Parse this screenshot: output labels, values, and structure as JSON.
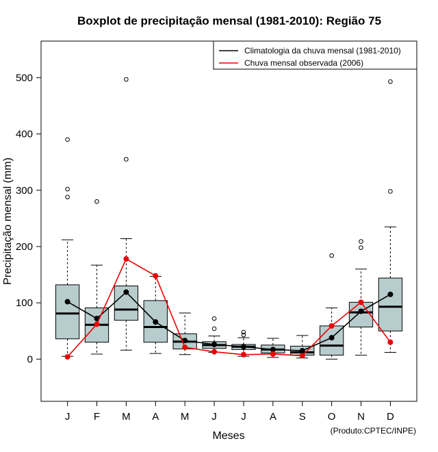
{
  "chart_data": {
    "type": "boxplot",
    "title": "Boxplot de precipitação mensal (1981-2010): Região 75",
    "xlabel": "Meses",
    "ylabel": "Precipitação mensal (mm)",
    "categories": [
      "J",
      "F",
      "M",
      "A",
      "M",
      "J",
      "J",
      "A",
      "S",
      "O",
      "N",
      "D"
    ],
    "ylim": [
      -75,
      565
    ],
    "yticks": [
      0,
      100,
      200,
      300,
      400,
      500
    ],
    "boxes": [
      {
        "whisker_low": 5,
        "q1": 36,
        "median": 81,
        "q3": 132,
        "whisker_high": 212,
        "outliers": [
          288,
          302,
          390
        ]
      },
      {
        "whisker_low": 9,
        "q1": 30,
        "median": 61,
        "q3": 91,
        "whisker_high": 167,
        "outliers": [
          280
        ]
      },
      {
        "whisker_low": 16,
        "q1": 69,
        "median": 88,
        "q3": 130,
        "whisker_high": 214,
        "outliers": [
          355,
          497
        ]
      },
      {
        "whisker_low": 10,
        "q1": 30,
        "median": 57,
        "q3": 104,
        "whisker_high": 147,
        "outliers": []
      },
      {
        "whisker_low": 8,
        "q1": 18,
        "median": 31,
        "q3": 45,
        "whisker_high": 82,
        "outliers": []
      },
      {
        "whisker_low": 12,
        "q1": 19,
        "median": 25,
        "q3": 31,
        "whisker_high": 41,
        "outliers": [
          54,
          72
        ]
      },
      {
        "whisker_low": 5,
        "q1": 17,
        "median": 22,
        "q3": 26,
        "whisker_high": 38,
        "outliers": [
          43,
          48
        ]
      },
      {
        "whisker_low": 3,
        "q1": 11,
        "median": 17,
        "q3": 25,
        "whisker_high": 37,
        "outliers": []
      },
      {
        "whisker_low": 2,
        "q1": 7,
        "median": 12,
        "q3": 23,
        "whisker_high": 42,
        "outliers": []
      },
      {
        "whisker_low": 0,
        "q1": 7,
        "median": 24,
        "q3": 59,
        "whisker_high": 91,
        "outliers": [
          184
        ]
      },
      {
        "whisker_low": 7,
        "q1": 57,
        "median": 83,
        "q3": 101,
        "whisker_high": 160,
        "outliers": [
          198,
          209
        ]
      },
      {
        "whisker_low": 12,
        "q1": 50,
        "median": 93,
        "q3": 144,
        "whisker_high": 235,
        "outliers": [
          298,
          493
        ]
      }
    ],
    "series": [
      {
        "name": "Climatologia da chuva mensal (1981-2010)",
        "color": "#000000",
        "values": [
          102,
          72,
          119,
          66,
          33,
          26,
          22,
          17,
          15,
          38,
          85,
          115
        ]
      },
      {
        "name": "Chuva mensal observada (2006)",
        "color": "#ee0000",
        "values": [
          4,
          62,
          178,
          148,
          21,
          13,
          8,
          9,
          6,
          59,
          101,
          30
        ]
      }
    ],
    "legend_position": "top-right",
    "box_color": "#b7cccc",
    "credit": "(Produto:CPTEC/INPE)"
  }
}
